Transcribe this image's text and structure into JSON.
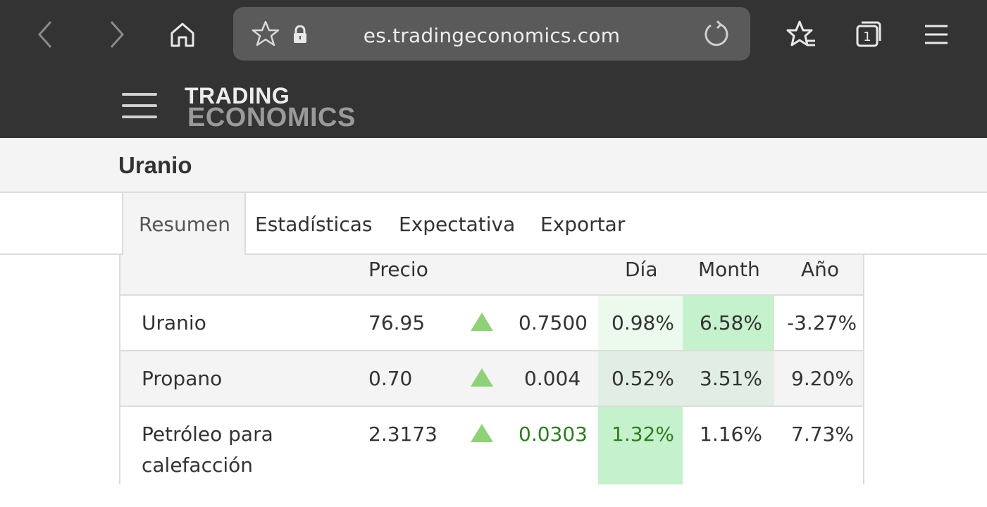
{
  "browser": {
    "url": "es.tradingeconomics.com",
    "tab_count": "1",
    "icons": [
      "back-icon",
      "forward-icon",
      "home-icon",
      "star-icon",
      "lock-icon",
      "reload-icon",
      "favorites-icon",
      "tabs-icon",
      "menu-icon"
    ]
  },
  "site": {
    "logo_top": "TRADING",
    "logo_bottom": "ECONOMICS"
  },
  "page": {
    "title": "Uranio"
  },
  "tabs": [
    {
      "label": "Resumen",
      "active": true
    },
    {
      "label": "Estadísticas",
      "active": false
    },
    {
      "label": "Expectativa",
      "active": false
    },
    {
      "label": "Exportar",
      "active": false
    }
  ],
  "table": {
    "headers": {
      "precio": "Precio",
      "dia": "Día",
      "month": "Month",
      "ano": "Año"
    },
    "rows": [
      {
        "name": "Uranio",
        "name2": "",
        "price": "76.95",
        "change": "0.7500",
        "day": "0.98%",
        "month": "6.58%",
        "year": "-3.27%"
      },
      {
        "name": "Propano",
        "name2": "",
        "price": "0.70",
        "change": "0.004",
        "day": "0.52%",
        "month": "3.51%",
        "year": "9.20%"
      },
      {
        "name": "Petróleo para",
        "name2": "calefacción",
        "price": "2.3173",
        "change": "0.0303",
        "day": "1.32%",
        "month": "1.16%",
        "year": "7.73%"
      }
    ]
  },
  "colors": {
    "bar_bg": "#333333",
    "up_arrow": "#8fd178",
    "positive_text": "#2e7d1f",
    "cell_light_green": "#ecfaee",
    "cell_green": "#c6f1cd",
    "cell_grey_green": "#e2ede4"
  }
}
